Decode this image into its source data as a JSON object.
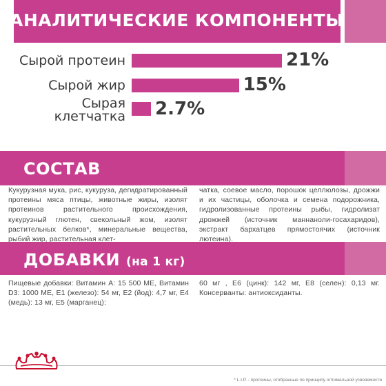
{
  "analytic": {
    "title": "АНАЛИТИЧЕСКИЕ КОМПОНЕНТЫ",
    "rows": [
      {
        "label": "Сырой протеин",
        "percent": "21%",
        "value": 21
      },
      {
        "label": "Сырой жир",
        "percent": "15%",
        "value": 15
      },
      {
        "label": "Сырая клетчатка",
        "label_line1": "Сырая",
        "label_line2": "клетчатка",
        "percent": "2.7%",
        "value": 2.7
      }
    ]
  },
  "sostav": {
    "title": "СОСТАВ",
    "col1": "Кукурузная мука, рис, кукуруза, дегидратированный протеины мяса птицы, животные жиры, изолят протеинов растительного происхождения, кукурузный глютен, свекольный жом, изолят растительных белков*, минеральные вещества, рыбий жир, растительная клет-",
    "col2": "чатка, соевое масло, порошок целлюлозы, дрожжи и их частицы, оболочка и семена подорожника, гидролизованные протеины рыбы, гидролизат дрожжей (источник маннаноли-госахаридов), экстракт бархатцев прямостоячих (источник лютеина)."
  },
  "dobavki": {
    "title": "ДОБАВКИ",
    "subtitle": "(на 1 кг)",
    "col1": "Пищевые добавки: Витамин А: 15 500 МЕ, Витамин D3: 1000 МЕ, Е1 (железо): 54 мг, Е2 (йод): 4,7 мг, Е4 (медь): 13 мг, Е5 (марганец):",
    "col2": "60 мг , Е6 (цинк): 142 мг, Е8 (селен): 0,13 мг. Консерванты: антиоксиданты."
  },
  "footer": {
    "note": "* L.I.P. - протеины, отобранные по принципу оптимальной усвояемости"
  },
  "colors": {
    "accent": "#c83e8f",
    "accent_light": "#d26aa3",
    "text": "#444444"
  },
  "icons": {
    "logo": "royal-canin-crown-icon"
  }
}
